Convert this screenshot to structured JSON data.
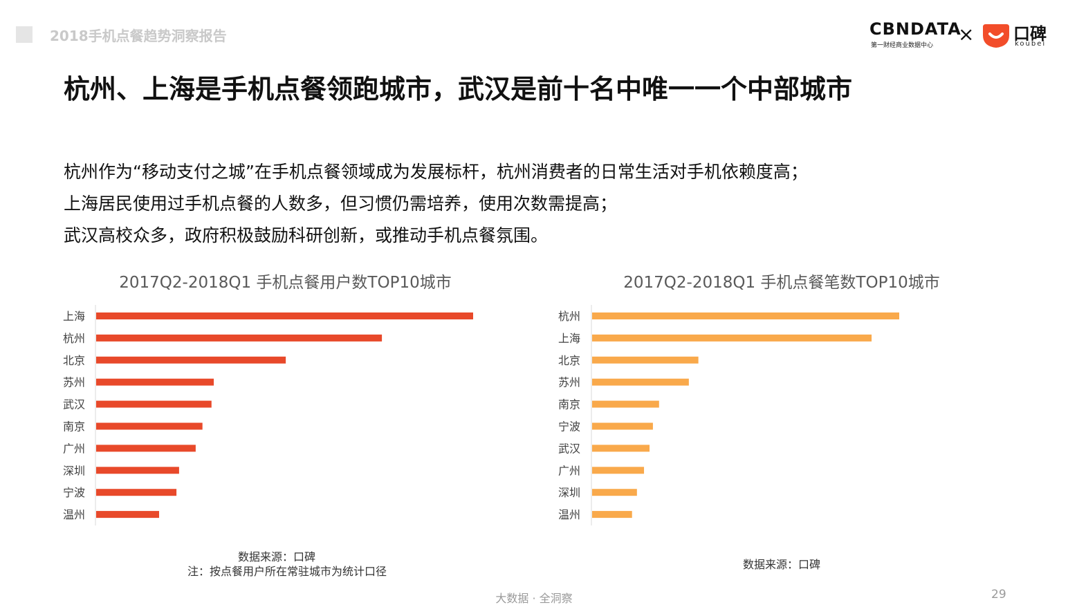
{
  "header": {
    "report_title": "2018手机点餐趋势洞察报告",
    "logo_cbn": "CBNDATA",
    "logo_cbn_sub": "第一财经商业数据中心",
    "logo_times": "×",
    "logo_koubei_cn": "口碑",
    "logo_koubei_en": "koubei"
  },
  "heading": "杭州、上海是手机点餐领跑城市，武汉是前十名中唯一一个中部城市",
  "body": {
    "lines": [
      "杭州作为“移动支付之城”在手机点餐领域成为发展标杆，杭州消费者的日常生活对手机依赖度高；",
      "上海居民使用过手机点餐的人数多，但习惯仍需培养，使用次数需提高；",
      "武汉高校众多，政府积极鼓励科研创新，或推动手机点餐氛围。"
    ]
  },
  "chart_data": [
    {
      "type": "bar",
      "orientation": "horizontal",
      "title": "2017Q2-2018Q1 手机点餐用户数TOP10城市",
      "categories": [
        "上海",
        "杭州",
        "北京",
        "苏州",
        "武汉",
        "南京",
        "广州",
        "深圳",
        "宁波",
        "温州"
      ],
      "values": [
        100,
        75.8,
        50.3,
        31.2,
        30.6,
        28.2,
        26.4,
        22.0,
        21.3,
        16.7
      ],
      "unit": "relative (no axis printed, longest = 100)",
      "color": "#e8492a",
      "grid": false,
      "source": [
        "数据来源：口碑",
        "注：按点餐用户所在常驻城市为统计口径"
      ]
    },
    {
      "type": "bar",
      "orientation": "horizontal",
      "title": "2017Q2-2018Q1 手机点餐笔数TOP10城市",
      "categories": [
        "杭州",
        "上海",
        "北京",
        "苏州",
        "南京",
        "宁波",
        "武汉",
        "广州",
        "深圳",
        "温州"
      ],
      "values": [
        100,
        91.0,
        34.6,
        31.5,
        21.8,
        19.8,
        18.7,
        16.9,
        14.6,
        13.0
      ],
      "unit": "relative (no axis printed, longest = 100)",
      "color": "#f9a94b",
      "grid": false,
      "source": [
        "数据来源：口碑"
      ]
    }
  ],
  "footer": {
    "slogan": "大数据 · 全洞察",
    "page_number": "29"
  }
}
